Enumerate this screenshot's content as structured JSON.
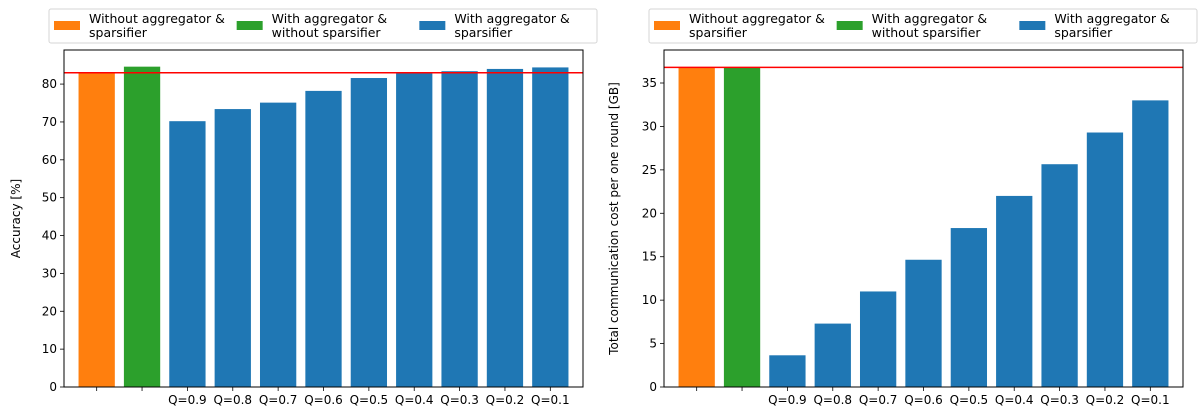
{
  "colors": {
    "orange": "#ff7f0e",
    "green": "#2ca02c",
    "blue": "#1f77b4",
    "reference_line": "#ff0000"
  },
  "chart_data": [
    {
      "type": "bar",
      "title": "",
      "xlabel": "",
      "ylabel": "Accuracy [%]",
      "ylim": [
        0,
        89
      ],
      "yticks": [
        0,
        10,
        20,
        30,
        40,
        50,
        60,
        70,
        80
      ],
      "grid": false,
      "legend_placement": "top (above axes)",
      "legend": [
        {
          "label_lines": [
            "Without aggregator &",
            "sparsifier"
          ],
          "color": "#ff7f0e"
        },
        {
          "label_lines": [
            "With aggregator &",
            "without sparsifier"
          ],
          "color": "#2ca02c"
        },
        {
          "label_lines": [
            "With aggregator &",
            "sparsifier"
          ],
          "color": "#1f77b4"
        }
      ],
      "categories": [
        "",
        "",
        "Q=0.9",
        "Q=0.8",
        "Q=0.7",
        "Q=0.6",
        "Q=0.5",
        "Q=0.4",
        "Q=0.3",
        "Q=0.2",
        "Q=0.1"
      ],
      "values": [
        83.0,
        84.6,
        70.2,
        73.4,
        75.1,
        78.2,
        81.6,
        83.0,
        83.4,
        84.0,
        84.4
      ],
      "bar_colors": [
        "#ff7f0e",
        "#2ca02c",
        "#1f77b4",
        "#1f77b4",
        "#1f77b4",
        "#1f77b4",
        "#1f77b4",
        "#1f77b4",
        "#1f77b4",
        "#1f77b4",
        "#1f77b4"
      ],
      "reference_line": 83.0
    },
    {
      "type": "bar",
      "title": "",
      "xlabel": "",
      "ylabel": "Total communication cost per one round [GB]",
      "ylim": [
        0,
        38.8
      ],
      "yticks": [
        0,
        5,
        10,
        15,
        20,
        25,
        30,
        35
      ],
      "grid": false,
      "legend_placement": "top (above axes)",
      "legend": [
        {
          "label_lines": [
            "Without aggregator &",
            "sparsifier"
          ],
          "color": "#ff7f0e"
        },
        {
          "label_lines": [
            "With aggregator &",
            "without sparsifier"
          ],
          "color": "#2ca02c"
        },
        {
          "label_lines": [
            "With aggregator &",
            "sparsifier"
          ],
          "color": "#1f77b4"
        }
      ],
      "categories": [
        "",
        "",
        "Q=0.9",
        "Q=0.8",
        "Q=0.7",
        "Q=0.6",
        "Q=0.5",
        "Q=0.4",
        "Q=0.3",
        "Q=0.2",
        "Q=0.1"
      ],
      "values": [
        36.8,
        36.8,
        3.65,
        7.3,
        11.0,
        14.65,
        18.3,
        22.0,
        25.65,
        29.3,
        33.0
      ],
      "bar_colors": [
        "#ff7f0e",
        "#2ca02c",
        "#1f77b4",
        "#1f77b4",
        "#1f77b4",
        "#1f77b4",
        "#1f77b4",
        "#1f77b4",
        "#1f77b4",
        "#1f77b4",
        "#1f77b4"
      ],
      "reference_line": 36.8
    }
  ]
}
